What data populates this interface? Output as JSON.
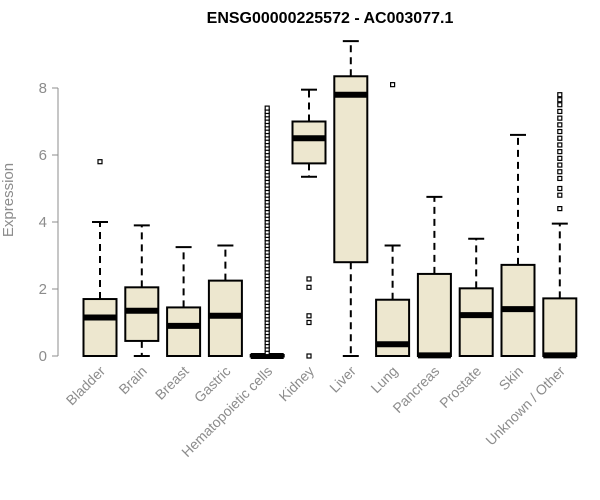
{
  "chart_data": {
    "type": "box",
    "title": "ENSG00000225572 - AC003077.1",
    "ylabel": "Expression",
    "xlabel": "",
    "ylim": [
      0,
      9.5
    ],
    "yticks": [
      0,
      2,
      4,
      6,
      8
    ],
    "grid": false,
    "box_fill": "#ede7cf",
    "categories": [
      "Bladder",
      "Brain",
      "Breast",
      "Gastric",
      "Hematopoietic cells",
      "Kidney",
      "Liver",
      "Lung",
      "Pancreas",
      "Prostate",
      "Skin",
      "Unknown / Other"
    ],
    "boxes": [
      {
        "min": 0,
        "q1": 0,
        "median": 1.15,
        "q3": 1.7,
        "max": 4.0,
        "outliers": [
          5.8
        ]
      },
      {
        "min": 0,
        "q1": 0.45,
        "median": 1.35,
        "q3": 2.05,
        "max": 3.9,
        "outliers": []
      },
      {
        "min": 0,
        "q1": 0,
        "median": 0.9,
        "q3": 1.45,
        "max": 3.25,
        "outliers": []
      },
      {
        "min": 0,
        "q1": 0,
        "median": 1.2,
        "q3": 2.25,
        "max": 3.3,
        "outliers": []
      },
      {
        "min": 0,
        "q1": 0,
        "median": 0,
        "q3": 0.03,
        "max": 0.05,
        "outliers": [
          0.1,
          0.2,
          0.3,
          0.4,
          0.5,
          0.6,
          0.7,
          0.8,
          0.9,
          1.0,
          1.1,
          1.2,
          1.3,
          1.4,
          1.5,
          1.6,
          1.7,
          1.8,
          1.9,
          2.0,
          2.1,
          2.2,
          2.3,
          2.4,
          2.5,
          2.6,
          2.7,
          2.8,
          2.9,
          3.0,
          3.1,
          3.2,
          3.3,
          3.4,
          3.5,
          3.6,
          3.7,
          3.8,
          3.9,
          4.0,
          4.1,
          4.2,
          4.3,
          4.4,
          4.5,
          4.6,
          4.7,
          4.8,
          4.9,
          5.0,
          5.1,
          5.2,
          5.3,
          5.4,
          5.5,
          5.6,
          5.7,
          5.8,
          5.9,
          6.0,
          6.1,
          6.2,
          6.3,
          6.4,
          6.5,
          6.6,
          6.7,
          6.8,
          6.9,
          7.0,
          7.1,
          7.2,
          7.3,
          7.4
        ]
      },
      {
        "min": 5.35,
        "q1": 5.75,
        "median": 6.5,
        "q3": 7.0,
        "max": 7.95,
        "outliers": [
          0.0,
          1.0,
          1.2,
          2.05,
          2.3
        ]
      },
      {
        "min": 0,
        "q1": 2.8,
        "median": 7.8,
        "q3": 8.35,
        "max": 9.4,
        "outliers": []
      },
      {
        "min": 0,
        "q1": 0,
        "median": 0.35,
        "q3": 1.68,
        "max": 3.3,
        "outliers": [
          8.1
        ]
      },
      {
        "min": 0,
        "q1": 0,
        "median": 0.02,
        "q3": 2.45,
        "max": 4.75,
        "outliers": []
      },
      {
        "min": 0,
        "q1": 0,
        "median": 1.22,
        "q3": 2.02,
        "max": 3.5,
        "outliers": []
      },
      {
        "min": 0,
        "q1": 0,
        "median": 1.4,
        "q3": 2.72,
        "max": 6.6,
        "outliers": []
      },
      {
        "min": 0,
        "q1": 0,
        "median": 0.02,
        "q3": 1.72,
        "max": 3.95,
        "outliers": [
          4.4,
          4.8,
          5.0,
          5.3,
          5.5,
          5.7,
          5.9,
          6.1,
          6.3,
          6.5,
          6.7,
          6.9,
          7.1,
          7.3,
          7.5,
          7.65,
          7.8
        ]
      }
    ]
  }
}
